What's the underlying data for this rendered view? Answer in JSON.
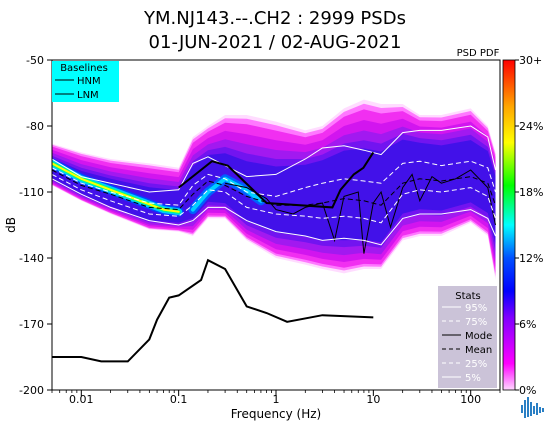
{
  "chart_data": {
    "type": "heatmap",
    "title": "YM.NJ143.--.CH2 : 2999 PSDs",
    "subtitle": "01-JUN-2021 / 02-AUG-2021",
    "xlabel": "Frequency (Hz)",
    "ylabel": "dB",
    "x_scale": "log",
    "xlim": [
      0.005,
      200
    ],
    "ylim": [
      -200,
      -50
    ],
    "x_ticks": [
      0.01,
      0.1,
      1,
      10,
      100
    ],
    "x_tick_labels": [
      "0.01",
      "0.1",
      "1",
      "10",
      "100"
    ],
    "y_ticks": [
      -50,
      -80,
      -110,
      -140,
      -170,
      -200
    ],
    "y_tick_labels": [
      "-50",
      "-80",
      "-110",
      "-140",
      "-170",
      "-200"
    ],
    "colorbar": {
      "title": "PSD PDF",
      "ticks": [
        30,
        24,
        18,
        12,
        6,
        0
      ],
      "tick_labels": [
        "30+",
        "24%",
        "18%",
        "12%",
        "6%",
        "0%"
      ],
      "colors": [
        "#ff0000",
        "#ffa500",
        "#ffff00",
        "#00ff00",
        "#00ffff",
        "#0050ff",
        "#0000ff",
        "#7f00ff",
        "#ff00ff",
        "#ffd8ff"
      ]
    },
    "baselines": {
      "title": "Baselines",
      "entries": [
        "HNM",
        "LNM"
      ],
      "hnm": {
        "x": [
          0.1,
          0.22,
          0.32,
          0.8,
          3.8,
          4.6,
          6.3,
          7.9,
          10
        ],
        "y": [
          -108,
          -96,
          -98,
          -115,
          -117,
          -109,
          -102,
          -99,
          -92
        ]
      },
      "lnm": {
        "x": [
          0.005,
          0.01,
          0.016,
          0.03,
          0.05,
          0.06,
          0.08,
          0.1,
          0.17,
          0.2,
          0.3,
          0.5,
          0.8,
          1.3,
          3,
          10
        ],
        "y": [
          -185,
          -185,
          -187,
          -187,
          -177,
          -168,
          -158,
          -157,
          -150,
          -141,
          -145,
          -162,
          -165,
          -169,
          -166,
          -167
        ]
      }
    },
    "stats": {
      "title": "Stats",
      "entries": [
        "95%",
        "75%",
        "Mode",
        "Mean",
        "25%",
        "5%"
      ]
    },
    "series": [
      {
        "name": "95%",
        "x": [
          0.005,
          0.01,
          0.02,
          0.05,
          0.1,
          0.14,
          0.2,
          0.3,
          0.5,
          1,
          2,
          3,
          5,
          8,
          12,
          20,
          30,
          50,
          100,
          150,
          180
        ],
        "y": [
          -95,
          -103,
          -106,
          -110,
          -109,
          -97,
          -94,
          -98,
          -103,
          -102,
          -95,
          -90,
          -89,
          -91,
          -93,
          -83,
          -82,
          -82,
          -80,
          -85,
          -100
        ]
      },
      {
        "name": "75%",
        "x": [
          0.005,
          0.01,
          0.02,
          0.05,
          0.1,
          0.14,
          0.2,
          0.3,
          0.5,
          1,
          2,
          3,
          5,
          8,
          12,
          20,
          30,
          50,
          100,
          150,
          180
        ],
        "y": [
          -99,
          -106,
          -110,
          -115,
          -116,
          -107,
          -102,
          -104,
          -110,
          -112,
          -108,
          -106,
          -104,
          -105,
          -106,
          -97,
          -96,
          -98,
          -96,
          -99,
          -110
        ]
      },
      {
        "name": "Mode",
        "x": [
          0.3,
          0.5,
          0.8,
          1,
          1.5,
          2,
          3,
          4,
          5,
          7,
          8,
          10,
          12,
          15,
          20,
          25,
          30,
          40,
          50,
          70,
          100,
          150,
          180
        ],
        "y": [
          -106,
          -108,
          -113,
          -118,
          -120,
          -117,
          -115,
          -132,
          -112,
          -110,
          -138,
          -115,
          -110,
          -126,
          -108,
          -102,
          -114,
          -103,
          -106,
          -104,
          -100,
          -108,
          -125
        ]
      },
      {
        "name": "Mean",
        "x": [
          0.005,
          0.01,
          0.02,
          0.05,
          0.1,
          0.14,
          0.2,
          0.3,
          0.5,
          1,
          2,
          3,
          5,
          8,
          12,
          20,
          30,
          50,
          100,
          150,
          180
        ],
        "y": [
          -100,
          -107,
          -111,
          -117,
          -118,
          -111,
          -105,
          -107,
          -112,
          -116,
          -116,
          -115,
          -113,
          -114,
          -116,
          -106,
          -104,
          -105,
          -103,
          -106,
          -116
        ]
      },
      {
        "name": "25%",
        "x": [
          0.005,
          0.01,
          0.02,
          0.05,
          0.1,
          0.14,
          0.2,
          0.3,
          0.5,
          1,
          2,
          3,
          5,
          8,
          12,
          20,
          30,
          50,
          100,
          150,
          180
        ],
        "y": [
          -102,
          -109,
          -114,
          -120,
          -121,
          -116,
          -109,
          -110,
          -117,
          -120,
          -121,
          -122,
          -121,
          -122,
          -124,
          -111,
          -109,
          -110,
          -108,
          -112,
          -122
        ]
      },
      {
        "name": "5%",
        "x": [
          0.005,
          0.01,
          0.02,
          0.05,
          0.1,
          0.14,
          0.2,
          0.3,
          0.5,
          1,
          2,
          3,
          5,
          8,
          12,
          20,
          30,
          50,
          100,
          150,
          180
        ],
        "y": [
          -104,
          -111,
          -117,
          -123,
          -125,
          -123,
          -117,
          -117,
          -123,
          -128,
          -130,
          -132,
          -131,
          -132,
          -134,
          -122,
          -120,
          -120,
          -118,
          -122,
          -130
        ]
      }
    ],
    "pdf_band": {
      "x": [
        0.005,
        0.01,
        0.02,
        0.05,
        0.1,
        0.14,
        0.2,
        0.3,
        0.5,
        1,
        2,
        3,
        5,
        8,
        12,
        20,
        30,
        50,
        100,
        150,
        180
      ],
      "upper": [
        -88,
        -92,
        -95,
        -97,
        -99,
        -85,
        -80,
        -75,
        -75,
        -78,
        -82,
        -80,
        -72,
        -68,
        -70,
        -70,
        -75,
        -75,
        -72,
        -80,
        -92
      ],
      "lower": [
        -107,
        -114,
        -120,
        -127,
        -128,
        -130,
        -122,
        -122,
        -132,
        -140,
        -143,
        -145,
        -147,
        -145,
        -145,
        -132,
        -130,
        -130,
        -124,
        -130,
        -150
      ]
    }
  }
}
